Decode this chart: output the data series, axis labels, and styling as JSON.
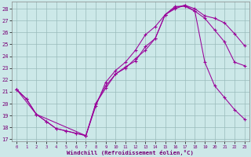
{
  "xlabel": "Windchill (Refroidissement éolien,°C)",
  "background_color": "#cce8e8",
  "grid_color": "#99bbbb",
  "line_color": "#990099",
  "xlim": [
    -0.5,
    23.5
  ],
  "ylim": [
    16.8,
    28.6
  ],
  "yticks": [
    17,
    18,
    19,
    20,
    21,
    22,
    23,
    24,
    25,
    26,
    27,
    28
  ],
  "xticks": [
    0,
    1,
    2,
    3,
    4,
    5,
    6,
    7,
    8,
    9,
    10,
    11,
    12,
    13,
    14,
    15,
    16,
    17,
    18,
    19,
    20,
    21,
    22,
    23
  ],
  "curve1_x": [
    0,
    1,
    2,
    3,
    4,
    5,
    6,
    7,
    8,
    9,
    10,
    11,
    12,
    13,
    14,
    15,
    16,
    17,
    18,
    19,
    20,
    21,
    22,
    23
  ],
  "curve1_y": [
    21.2,
    20.4,
    19.1,
    18.5,
    17.9,
    17.7,
    17.5,
    17.3,
    19.8,
    21.8,
    22.8,
    23.5,
    24.5,
    25.8,
    26.5,
    27.5,
    28.2,
    28.2,
    27.8,
    27.2,
    26.2,
    25.2,
    23.5,
    23.2
  ],
  "curve2_x": [
    0,
    1,
    2,
    3,
    4,
    5,
    6,
    7,
    8,
    9,
    10,
    11,
    12,
    13,
    14,
    15,
    16,
    17,
    18,
    19,
    20,
    21,
    22,
    23
  ],
  "curve2_y": [
    21.2,
    20.4,
    19.1,
    18.5,
    17.9,
    17.7,
    17.5,
    17.3,
    20.0,
    21.5,
    22.5,
    23.0,
    23.8,
    24.5,
    25.5,
    27.5,
    28.0,
    28.3,
    28.0,
    27.4,
    27.2,
    26.8,
    25.9,
    24.9
  ],
  "curve3_x": [
    0,
    2,
    7,
    8,
    9,
    10,
    11,
    12,
    13,
    14,
    15,
    16,
    17,
    18,
    19,
    20,
    21,
    22,
    23
  ],
  "curve3_y": [
    21.2,
    19.1,
    17.3,
    20.0,
    21.3,
    22.5,
    23.1,
    23.6,
    24.8,
    25.5,
    27.5,
    28.1,
    28.3,
    27.8,
    23.5,
    21.5,
    20.5,
    19.5,
    18.7
  ]
}
